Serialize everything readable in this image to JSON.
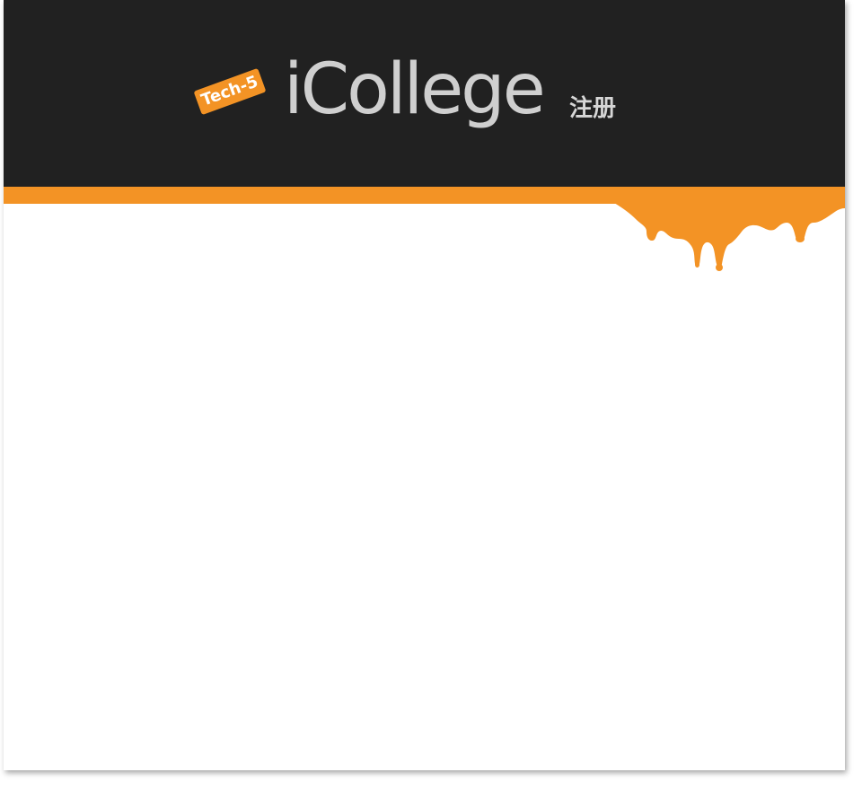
{
  "header": {
    "badge": "Tech-5",
    "app_name": "iCollege",
    "subtitle": "注册"
  },
  "colors": {
    "header_bg": "#212121",
    "accent_orange": "#f39325",
    "title_text": "#cfcfcf",
    "content_bg": "#ffffff"
  },
  "icons": {
    "paint_drip": "paint-drip-decoration"
  }
}
